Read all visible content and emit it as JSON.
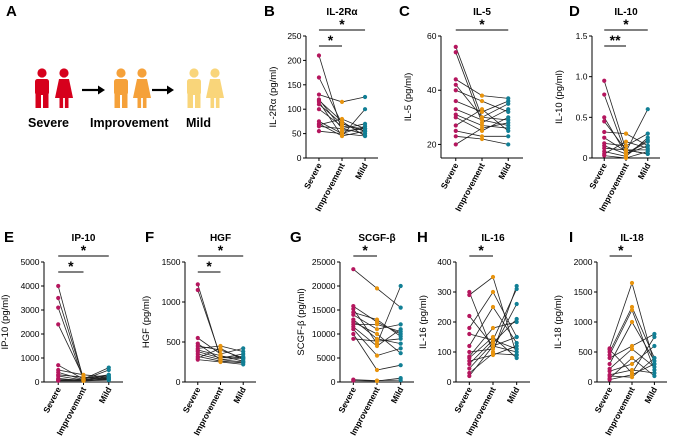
{
  "figure": {
    "panel_a": {
      "label": "A",
      "groups": [
        "Severe",
        "Improvement",
        "Mild"
      ],
      "colors": [
        "#d6001c",
        "#f5a13a",
        "#f9d57a"
      ]
    }
  },
  "palette": {
    "severe": "#b5165e",
    "improvement": "#e8940e",
    "mild": "#117f95"
  },
  "categories": [
    "Severe",
    "Improvement",
    "Mild"
  ],
  "chart_data": [
    {
      "type": "line",
      "label": "B",
      "title": "IL-2Rα",
      "ylabel": "IL-2Rα (pg/ml)",
      "ylim": [
        0,
        250
      ],
      "yticks": [
        0,
        50,
        100,
        150,
        200,
        250
      ],
      "sig": [
        {
          "from": 0,
          "to": 1,
          "text": "*"
        },
        {
          "from": 0,
          "to": 2,
          "text": "*"
        }
      ],
      "subjects": [
        [
          210,
          55,
          60
        ],
        [
          165,
          70,
          55
        ],
        [
          130,
          115,
          125
        ],
        [
          120,
          60,
          50
        ],
        [
          118,
          75,
          45
        ],
        [
          115,
          45,
          100
        ],
        [
          110,
          70,
          55
        ],
        [
          100,
          65,
          60
        ],
        [
          75,
          50,
          65
        ],
        [
          70,
          45,
          55
        ],
        [
          68,
          80,
          60
        ],
        [
          65,
          60,
          70
        ],
        [
          55,
          50,
          45
        ]
      ]
    },
    {
      "type": "line",
      "label": "C",
      "title": "IL-5",
      "ylabel": "IL-5 (pg/ml)",
      "ylim": [
        15,
        60
      ],
      "yticks": [
        20,
        40,
        60
      ],
      "sig": [
        {
          "from": 0,
          "to": 2,
          "text": "*"
        }
      ],
      "subjects": [
        [
          56,
          30,
          35
        ],
        [
          54,
          28,
          33
        ],
        [
          44,
          38,
          37
        ],
        [
          42,
          30,
          29
        ],
        [
          40,
          36,
          32
        ],
        [
          36,
          32,
          36
        ],
        [
          33,
          29,
          27
        ],
        [
          31,
          27,
          26
        ],
        [
          30,
          25,
          30
        ],
        [
          27,
          33,
          25
        ],
        [
          25,
          23,
          23
        ],
        [
          23,
          22,
          20
        ],
        [
          20,
          26,
          28
        ]
      ]
    },
    {
      "type": "line",
      "label": "D",
      "title": "IL-10",
      "ylabel": "IL-10 (pg/ml)",
      "ylim": [
        0,
        1.5
      ],
      "yticks": [
        0,
        0.5,
        1.0,
        1.5
      ],
      "sig": [
        {
          "from": 0,
          "to": 1,
          "text": "**"
        },
        {
          "from": 0,
          "to": 2,
          "text": "*"
        }
      ],
      "subjects": [
        [
          0.95,
          0.1,
          0.05
        ],
        [
          0.78,
          0.05,
          0.15
        ],
        [
          0.5,
          0.05,
          0.2
        ],
        [
          0.45,
          0.1,
          0.1
        ],
        [
          0.32,
          0.3,
          0.15
        ],
        [
          0.25,
          0.08,
          0.6
        ],
        [
          0.18,
          0.15,
          0.3
        ],
        [
          0.15,
          0.05,
          0.22
        ],
        [
          0.12,
          0.1,
          0.05
        ],
        [
          0.08,
          0.02,
          0.25
        ],
        [
          0.05,
          0.2,
          0.12
        ],
        [
          0.03,
          0.0,
          0.08
        ]
      ]
    },
    {
      "type": "line",
      "label": "E",
      "title": "IP-10",
      "ylabel": "IP-10 (pg/ml)",
      "ylim": [
        0,
        5000
      ],
      "yticks": [
        0,
        1000,
        2000,
        3000,
        4000,
        5000
      ],
      "sig": [
        {
          "from": 0,
          "to": 1,
          "text": "*"
        },
        {
          "from": 0,
          "to": 2,
          "text": "*"
        }
      ],
      "subjects": [
        [
          4000,
          100,
          200
        ],
        [
          3500,
          150,
          300
        ],
        [
          3100,
          80,
          100
        ],
        [
          2400,
          200,
          150
        ],
        [
          700,
          120,
          600
        ],
        [
          500,
          300,
          200
        ],
        [
          400,
          100,
          500
        ],
        [
          300,
          200,
          100
        ],
        [
          250,
          80,
          300
        ],
        [
          150,
          50,
          150
        ],
        [
          100,
          100,
          100
        ],
        [
          80,
          60,
          250
        ],
        [
          50,
          50,
          80
        ]
      ]
    },
    {
      "type": "line",
      "label": "F",
      "title": "HGF",
      "ylabel": "HGF (pg/ml)",
      "ylim": [
        0,
        1500
      ],
      "yticks": [
        0,
        500,
        1000,
        1500
      ],
      "sig": [
        {
          "from": 0,
          "to": 1,
          "text": "*"
        },
        {
          "from": 0,
          "to": 2,
          "text": "*"
        }
      ],
      "subjects": [
        [
          1220,
          300,
          350
        ],
        [
          1150,
          320,
          300
        ],
        [
          550,
          350,
          420
        ],
        [
          480,
          280,
          250
        ],
        [
          450,
          400,
          300
        ],
        [
          420,
          450,
          380
        ],
        [
          400,
          330,
          260
        ],
        [
          380,
          300,
          320
        ],
        [
          350,
          280,
          300
        ],
        [
          320,
          260,
          240
        ],
        [
          300,
          420,
          280
        ],
        [
          280,
          250,
          220
        ]
      ]
    },
    {
      "type": "line",
      "label": "G",
      "title": "SCGF-β",
      "ylabel": "SCGF-β (pg/ml)",
      "ylim": [
        0,
        25000
      ],
      "yticks": [
        0,
        5000,
        10000,
        15000,
        20000,
        25000
      ],
      "sig": [
        {
          "from": 0,
          "to": 1,
          "text": "*"
        }
      ],
      "subjects": [
        [
          23500,
          19500,
          15500
        ],
        [
          15800,
          12500,
          10000
        ],
        [
          15200,
          8000,
          20000
        ],
        [
          14500,
          13000,
          9500
        ],
        [
          14000,
          11000,
          12000
        ],
        [
          13000,
          9000,
          8000
        ],
        [
          12500,
          10000,
          6000
        ],
        [
          12000,
          12000,
          10500
        ],
        [
          11500,
          7500,
          11000
        ],
        [
          11000,
          5500,
          7000
        ],
        [
          10000,
          2500,
          3500
        ],
        [
          9000,
          8500,
          9000
        ],
        [
          500,
          300,
          400
        ],
        [
          300,
          200,
          800
        ]
      ]
    },
    {
      "type": "line",
      "label": "H",
      "title": "IL-16",
      "ylabel": "IL-16 (pg/ml)",
      "ylim": [
        0,
        400
      ],
      "yticks": [
        0,
        100,
        200,
        300,
        400
      ],
      "sig": [
        {
          "from": 0,
          "to": 1,
          "text": "*"
        }
      ],
      "subjects": [
        [
          300,
          100,
          320
        ],
        [
          290,
          350,
          90
        ],
        [
          220,
          120,
          100
        ],
        [
          180,
          300,
          150
        ],
        [
          160,
          140,
          310
        ],
        [
          120,
          250,
          130
        ],
        [
          100,
          110,
          260
        ],
        [
          85,
          180,
          200
        ],
        [
          80,
          150,
          80
        ],
        [
          70,
          90,
          120
        ],
        [
          60,
          140,
          110
        ],
        [
          45,
          130,
          210
        ],
        [
          30,
          95,
          90
        ],
        [
          20,
          120,
          150
        ]
      ]
    },
    {
      "type": "line",
      "label": "I",
      "title": "IL-18",
      "ylabel": "IL-18 (pg/ml)",
      "ylim": [
        0,
        2000
      ],
      "yticks": [
        0,
        500,
        1000,
        1500,
        2000
      ],
      "sig": [
        {
          "from": 0,
          "to": 1,
          "text": "*"
        }
      ],
      "subjects": [
        [
          560,
          1650,
          300
        ],
        [
          540,
          150,
          750
        ],
        [
          500,
          1250,
          400
        ],
        [
          450,
          1200,
          200
        ],
        [
          400,
          600,
          800
        ],
        [
          300,
          1000,
          350
        ],
        [
          220,
          550,
          250
        ],
        [
          180,
          300,
          600
        ],
        [
          120,
          200,
          150
        ],
        [
          100,
          80,
          400
        ],
        [
          60,
          400,
          100
        ],
        [
          40,
          120,
          300
        ]
      ]
    }
  ]
}
